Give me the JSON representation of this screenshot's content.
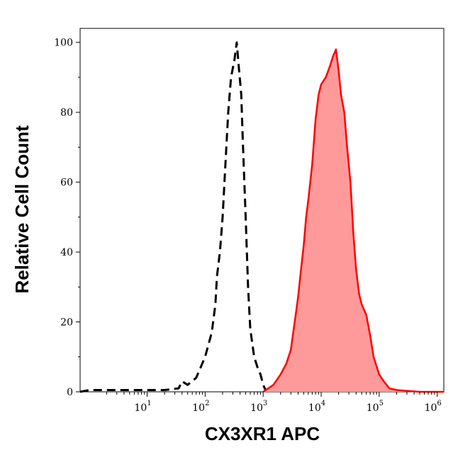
{
  "chart_data": {
    "type": "area",
    "title": "",
    "xlabel": "CX3XR1 APC",
    "ylabel": "Relative Cell Count",
    "xscale": "log",
    "xlim": [
      0.7,
      1300000
    ],
    "ylim": [
      0,
      104
    ],
    "x_ticks": [
      {
        "value": 10,
        "base": "10",
        "exp": "1"
      },
      {
        "value": 100,
        "base": "10",
        "exp": "2"
      },
      {
        "value": 1000,
        "base": "10",
        "exp": "3"
      },
      {
        "value": 10000,
        "base": "10",
        "exp": "4"
      },
      {
        "value": 100000,
        "base": "10",
        "exp": "5"
      },
      {
        "value": 1000000,
        "base": "10",
        "exp": "6"
      }
    ],
    "y_ticks": [
      "0",
      "20",
      "40",
      "60",
      "80",
      "100"
    ],
    "grid": false,
    "legend": "none",
    "series": [
      {
        "style": "dashed-black",
        "color": "#000000",
        "x": [
          0.7,
          1,
          2,
          5,
          10,
          20,
          35,
          40,
          50,
          70,
          100,
          130,
          150,
          160,
          180,
          200,
          220,
          250,
          280,
          320,
          350,
          380,
          420,
          450,
          500,
          550,
          600,
          700,
          800,
          900,
          1000,
          1100,
          1300
        ],
        "y": [
          0,
          0.5,
          0.5,
          0.5,
          0.5,
          0.5,
          1,
          3,
          2,
          4,
          10,
          17,
          25,
          33,
          40,
          50,
          63,
          80,
          90,
          95,
          100,
          93,
          85,
          70,
          50,
          30,
          18,
          10,
          7,
          5,
          2,
          0.5,
          0
        ]
      },
      {
        "style": "filled-red",
        "color": "#ff0000",
        "fill": "#ff9a9a",
        "x": [
          1000,
          1500,
          2000,
          2500,
          3000,
          3500,
          4000,
          4500,
          5000,
          5500,
          6000,
          7000,
          8000,
          9000,
          10000,
          12000,
          14000,
          16000,
          18000,
          20000,
          22000,
          25000,
          28000,
          32000,
          36000,
          40000,
          45000,
          50000,
          60000,
          70000,
          80000,
          100000,
          120000,
          150000,
          200000,
          500000,
          1300000
        ],
        "y": [
          0,
          2,
          5,
          8,
          12,
          20,
          27,
          35,
          42,
          50,
          55,
          65,
          78,
          85,
          88,
          90,
          93,
          96,
          98,
          92,
          85,
          80,
          70,
          60,
          45,
          35,
          28,
          25,
          22,
          16,
          10,
          5,
          3,
          1,
          0.5,
          0,
          0
        ]
      }
    ]
  }
}
